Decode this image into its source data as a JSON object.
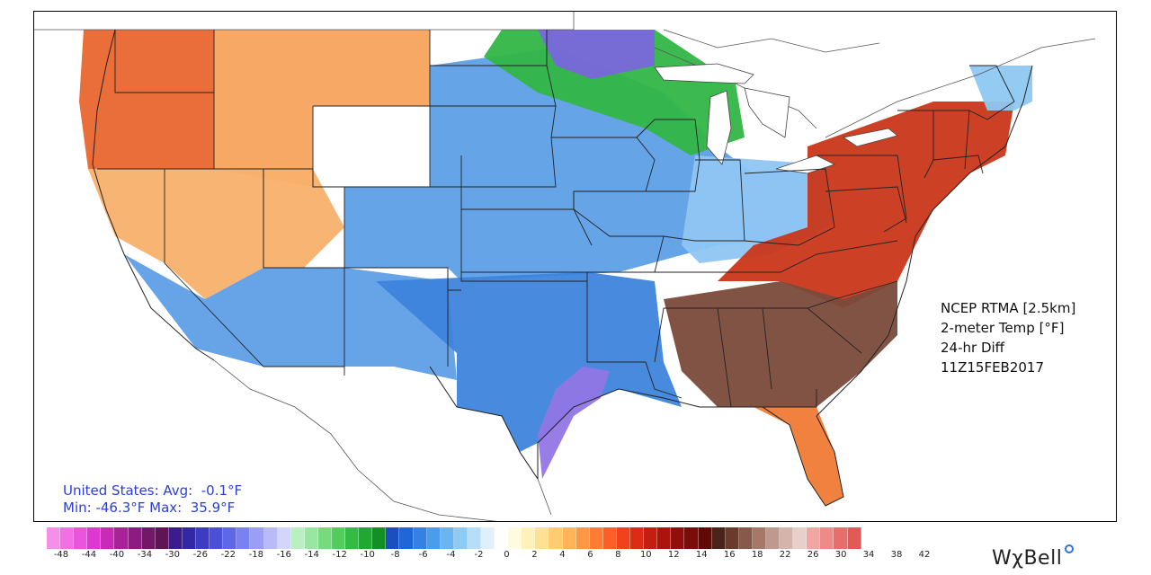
{
  "product": {
    "line1": "NCEP RTMA [2.5km]",
    "line2": "2-meter Temp [°F]",
    "line3": "24-hr Diff",
    "line4": "11Z15FEB2017"
  },
  "stats": {
    "line1": "United States: Avg:  -0.1°F",
    "line2": "Min: -46.3°F Max:  35.9°F"
  },
  "logo": {
    "text": "WχBell"
  },
  "colorbar": {
    "colors": [
      "#f58fe8",
      "#f170e3",
      "#e955dc",
      "#df38d2",
      "#c72bb8",
      "#a8229b",
      "#8d1c82",
      "#731868",
      "#5e1455",
      "#3a1c8c",
      "#3427a6",
      "#3b3cc2",
      "#4b50d6",
      "#5e68e6",
      "#7a82ef",
      "#9a9ff4",
      "#b9bbf8",
      "#d4d5fb",
      "#b9f0c2",
      "#98e69f",
      "#76db7c",
      "#52cc5b",
      "#34bb42",
      "#22a832",
      "#148f26",
      "#1a4fbf",
      "#2166d6",
      "#3581e3",
      "#4c9ced",
      "#69b5f2",
      "#8dcbf6",
      "#b6def9",
      "#dff0fb",
      "#ffffff",
      "#fffbe0",
      "#fff1ba",
      "#ffe194",
      "#ffcc72",
      "#ffb35a",
      "#ff9845",
      "#ff7c35",
      "#fb5e26",
      "#f0421c",
      "#dc2d14",
      "#c41e10",
      "#aa140d",
      "#910f0b",
      "#7a0c09",
      "#5f0a06",
      "#4a2419",
      "#6a3b2c",
      "#87594a",
      "#a5786a",
      "#bf998d",
      "#d4b5ab",
      "#e6d0c9",
      "#f2a5a2",
      "#ee8a87",
      "#e86e6c",
      "#e05a58"
    ],
    "ticks": [
      "-48",
      "-44",
      "-40",
      "-34",
      "-30",
      "-26",
      "-22",
      "-18",
      "-16",
      "-14",
      "-12",
      "-10",
      "-8",
      "-6",
      "-4",
      "-2",
      "0",
      "2",
      "4",
      "6",
      "8",
      "10",
      "12",
      "14",
      "16",
      "18",
      "22",
      "26",
      "30",
      "34",
      "38",
      "42"
    ]
  },
  "map_regions": [
    {
      "name": "pacific-northwest",
      "color": "#e8662e"
    },
    {
      "name": "northern-rockies",
      "color": "#f7a35c"
    },
    {
      "name": "great-basin",
      "color": "#f8b06b"
    },
    {
      "name": "southwest",
      "color": "#5f9fe6"
    },
    {
      "name": "northern-plains-midwest",
      "color": "#5d9fe6"
    },
    {
      "name": "upper-midwest-green",
      "color": "#33b646"
    },
    {
      "name": "minnesota-purple",
      "color": "#7a66dc"
    },
    {
      "name": "southern-plains",
      "color": "#3e84dc"
    },
    {
      "name": "texas-coast-purple",
      "color": "#9176e4"
    },
    {
      "name": "ohio-valley",
      "color": "#8fc6f3"
    },
    {
      "name": "mid-atlantic-northeast",
      "color": "#c9371a"
    },
    {
      "name": "southeast",
      "color": "#7a4a3a"
    },
    {
      "name": "florida",
      "color": "#f07a35"
    },
    {
      "name": "maine",
      "color": "#8ec8f2"
    }
  ]
}
